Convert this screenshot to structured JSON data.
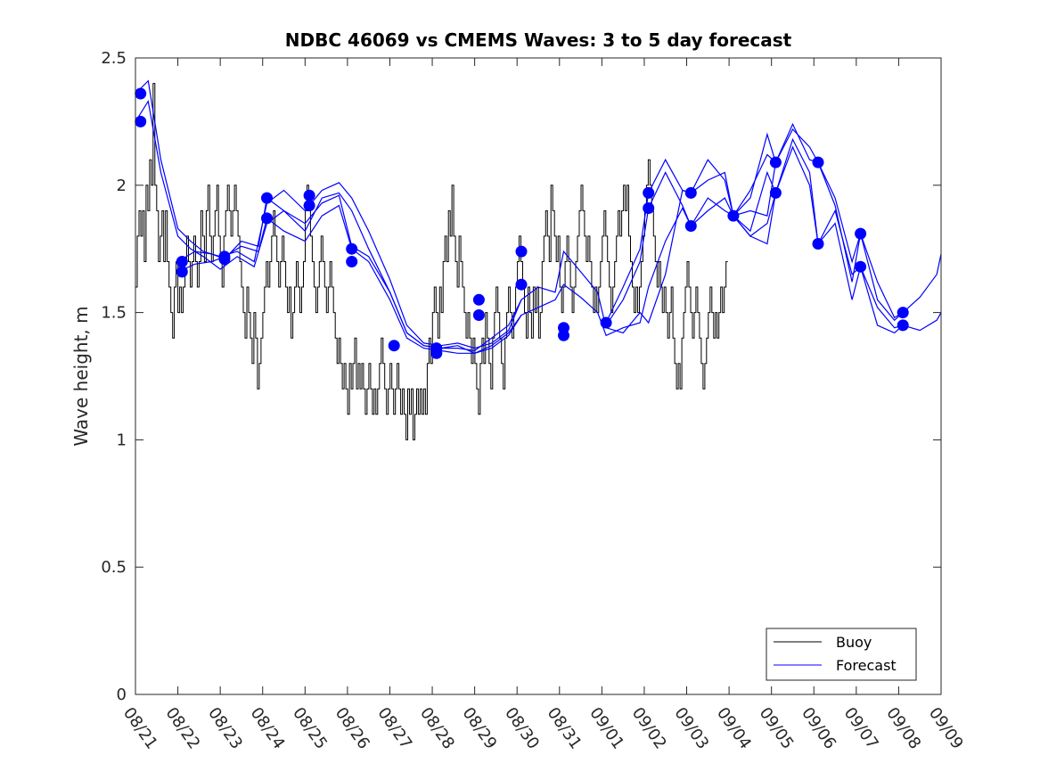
{
  "chart_data": {
    "type": "line",
    "title": "NDBC 46069 vs CMEMS Waves: 3 to 5 day forecast",
    "xlabel": "",
    "ylabel": "Wave height, m",
    "xlim": [
      0,
      19
    ],
    "ylim": [
      0,
      2.5
    ],
    "yticks": [
      0,
      0.5,
      1,
      1.5,
      2,
      2.5
    ],
    "ytick_labels": [
      "0",
      "0.5",
      "1",
      "1.5",
      "2",
      "2.5"
    ],
    "xtick_labels": [
      "08/21",
      "08/22",
      "08/23",
      "08/24",
      "08/25",
      "08/26",
      "08/27",
      "08/28",
      "08/29",
      "08/30",
      "08/31",
      "09/01",
      "09/02",
      "09/03",
      "09/04",
      "09/05",
      "09/06",
      "09/07",
      "09/08",
      "09/09"
    ],
    "legend": {
      "position": "bottom-right",
      "entries": [
        "Buoy",
        "Forecast"
      ]
    },
    "colors": {
      "buoy": "#000000",
      "forecast": "#0000ff",
      "axes": "#262626"
    },
    "buoy": {
      "name": "Buoy",
      "step_days": 0.0417,
      "x0": 0.0,
      "values": [
        1.6,
        1.8,
        1.9,
        1.8,
        1.9,
        1.7,
        2.0,
        1.9,
        2.1,
        2.0,
        2.4,
        2.0,
        1.9,
        1.7,
        1.8,
        1.9,
        1.7,
        1.9,
        1.7,
        1.6,
        1.5,
        1.4,
        1.6,
        1.7,
        1.5,
        1.6,
        1.5,
        1.6,
        1.7,
        1.8,
        1.7,
        1.6,
        1.7,
        1.8,
        1.7,
        1.6,
        1.7,
        1.9,
        1.8,
        1.7,
        1.9,
        2.0,
        1.8,
        1.7,
        1.8,
        1.9,
        2.0,
        1.8,
        1.7,
        1.6,
        1.8,
        1.9,
        2.0,
        1.9,
        1.8,
        1.9,
        2.0,
        1.9,
        1.8,
        1.7,
        1.6,
        1.5,
        1.4,
        1.6,
        1.5,
        1.4,
        1.3,
        1.5,
        1.4,
        1.2,
        1.3,
        1.4,
        1.5,
        1.6,
        1.7,
        1.6,
        1.7,
        1.8,
        1.9,
        1.8,
        1.7,
        1.6,
        1.7,
        1.8,
        1.7,
        1.6,
        1.5,
        1.6,
        1.4,
        1.5,
        1.6,
        1.7,
        1.6,
        1.5,
        1.6,
        1.7,
        1.9,
        2.0,
        1.9,
        1.8,
        1.7,
        1.6,
        1.5,
        1.6,
        1.7,
        1.8,
        1.7,
        1.6,
        1.5,
        1.6,
        1.7,
        1.6,
        1.5,
        1.4,
        1.3,
        1.4,
        1.3,
        1.2,
        1.3,
        1.2,
        1.1,
        1.3,
        1.2,
        1.3,
        1.4,
        1.2,
        1.3,
        1.2,
        1.3,
        1.2,
        1.1,
        1.2,
        1.3,
        1.2,
        1.1,
        1.2,
        1.1,
        1.2,
        1.3,
        1.4,
        1.3,
        1.2,
        1.1,
        1.2,
        1.3,
        1.2,
        1.1,
        1.2,
        1.3,
        1.2,
        1.1,
        1.2,
        1.1,
        1.0,
        1.2,
        1.1,
        1.2,
        1.0,
        1.1,
        1.2,
        1.1,
        1.2,
        1.1,
        1.2,
        1.1,
        1.3,
        1.4,
        1.3,
        1.5,
        1.6,
        1.5,
        1.4,
        1.6,
        1.5,
        1.7,
        1.8,
        1.7,
        1.9,
        1.8,
        2.0,
        1.8,
        1.7,
        1.6,
        1.8,
        1.7,
        1.6,
        1.5,
        1.4,
        1.5,
        1.4,
        1.3,
        1.4,
        1.3,
        1.2,
        1.1,
        1.3,
        1.4,
        1.3,
        1.5,
        1.4,
        1.3,
        1.2,
        1.4,
        1.5,
        1.6,
        1.5,
        1.4,
        1.3,
        1.2,
        1.4,
        1.5,
        1.6,
        1.5,
        1.4,
        1.5,
        1.6,
        1.7,
        1.8,
        1.7,
        1.6,
        1.5,
        1.4,
        1.6,
        1.5,
        1.4,
        1.6,
        1.5,
        1.6,
        1.4,
        1.5,
        1.7,
        1.8,
        1.9,
        1.8,
        1.7,
        2.0,
        1.9,
        1.8,
        1.7,
        1.8,
        1.6,
        1.5,
        1.6,
        1.7,
        1.8,
        1.7,
        1.6,
        1.5,
        1.6,
        1.7,
        1.8,
        1.9,
        2.0,
        1.9,
        1.8,
        1.7,
        1.8,
        1.7,
        1.6,
        1.5,
        1.6,
        1.5,
        1.6,
        1.7,
        1.8,
        1.9,
        1.8,
        1.7,
        1.6,
        1.5,
        1.6,
        1.7,
        1.8,
        1.9,
        1.8,
        1.9,
        2.0,
        1.9,
        2.0,
        1.8,
        1.7,
        1.6,
        1.5,
        1.6,
        1.5,
        1.6,
        1.7,
        1.8,
        1.9,
        2.0,
        2.1,
        2.0,
        1.9,
        1.8,
        1.7,
        1.6,
        1.7,
        1.6,
        1.5,
        1.6,
        1.5,
        1.4,
        1.5,
        1.6,
        1.4,
        1.3,
        1.2,
        1.3,
        1.2,
        1.4,
        1.5,
        1.6,
        1.7,
        1.6,
        1.5,
        1.4,
        1.5,
        1.6,
        1.5,
        1.4,
        1.3,
        1.2,
        1.3,
        1.4,
        1.5,
        1.6,
        1.5,
        1.4,
        1.5,
        1.4,
        1.5,
        1.6,
        1.5,
        1.6,
        1.7
      ]
    },
    "forecast_lines": [
      {
        "x": [
          0.0,
          0.3,
          0.6,
          1.0,
          1.3,
          1.6,
          2.0,
          2.4,
          2.8,
          3.1,
          3.5,
          4.0,
          4.4,
          4.8,
          5.1,
          5.5,
          6.0,
          6.4,
          6.8,
          7.2,
          7.6,
          8.0
        ],
        "values": [
          2.25,
          2.33,
          2.05,
          1.8,
          1.75,
          1.72,
          1.67,
          1.72,
          1.68,
          1.85,
          1.9,
          1.82,
          1.95,
          1.97,
          1.9,
          1.75,
          1.58,
          1.42,
          1.37,
          1.36,
          1.37,
          1.34
        ]
      },
      {
        "x": [
          0.0,
          0.3,
          0.6,
          1.0,
          1.3,
          1.6,
          2.0,
          2.4,
          2.8,
          3.1,
          3.5,
          4.0,
          4.4,
          4.8,
          5.1,
          5.5,
          6.0,
          6.4,
          6.8,
          7.2,
          7.6,
          8.0
        ],
        "values": [
          2.36,
          2.41,
          2.1,
          1.83,
          1.78,
          1.74,
          1.72,
          1.74,
          1.7,
          1.93,
          1.98,
          1.9,
          1.98,
          2.01,
          1.95,
          1.82,
          1.63,
          1.45,
          1.38,
          1.37,
          1.38,
          1.36
        ]
      },
      {
        "x": [
          1.0,
          1.4,
          1.8,
          2.1,
          2.5,
          2.9,
          3.1,
          3.5,
          4.0,
          4.4,
          4.8,
          5.1,
          5.5,
          6.0,
          6.4,
          6.8,
          7.2,
          7.6,
          8.0,
          8.4,
          8.8,
          9.1
        ],
        "values": [
          1.66,
          1.69,
          1.7,
          1.72,
          1.76,
          1.74,
          1.87,
          1.82,
          1.78,
          1.88,
          1.92,
          1.75,
          1.7,
          1.55,
          1.4,
          1.36,
          1.35,
          1.34,
          1.34,
          1.37,
          1.42,
          1.49
        ]
      },
      {
        "x": [
          1.0,
          1.4,
          1.8,
          2.1,
          2.5,
          2.9,
          3.1,
          3.5,
          4.0,
          4.4,
          4.8,
          5.1,
          5.5,
          6.0,
          6.4,
          6.8,
          7.2,
          7.6,
          8.0,
          8.4,
          8.8,
          9.1
        ],
        "values": [
          1.7,
          1.74,
          1.73,
          1.71,
          1.78,
          1.76,
          1.95,
          1.9,
          1.85,
          1.93,
          1.96,
          1.76,
          1.72,
          1.58,
          1.42,
          1.37,
          1.36,
          1.36,
          1.35,
          1.4,
          1.45,
          1.55
        ]
      },
      {
        "x": [
          8.0,
          8.4,
          8.8,
          9.1,
          9.5,
          9.9,
          10.1,
          10.5,
          10.9,
          11.1,
          11.5,
          11.9,
          12.1,
          12.5,
          12.9,
          13.1,
          13.5,
          13.9,
          14.1,
          14.5,
          14.9,
          15.1
        ],
        "values": [
          1.36,
          1.38,
          1.43,
          1.55,
          1.6,
          1.58,
          1.74,
          1.66,
          1.58,
          1.44,
          1.42,
          1.5,
          1.46,
          1.65,
          1.98,
          1.97,
          2.02,
          2.05,
          1.88,
          1.9,
          1.88,
          2.09
        ]
      },
      {
        "x": [
          8.0,
          8.4,
          8.8,
          9.1,
          9.5,
          9.9,
          10.1,
          10.5,
          10.9,
          11.1,
          11.5,
          11.9,
          12.1,
          12.5,
          12.9,
          13.1,
          13.5,
          13.9,
          14.1,
          14.5,
          14.9,
          15.1
        ],
        "values": [
          1.34,
          1.36,
          1.41,
          1.49,
          1.52,
          1.55,
          1.61,
          1.56,
          1.5,
          1.41,
          1.44,
          1.46,
          1.6,
          1.78,
          1.91,
          1.84,
          1.9,
          1.95,
          1.88,
          1.8,
          1.77,
          1.97
        ]
      },
      {
        "x": [
          11.1,
          11.5,
          11.9,
          12.1,
          12.5,
          12.9,
          13.1,
          13.5,
          13.9,
          14.1,
          14.5,
          14.9,
          15.1,
          15.5,
          15.9,
          16.1,
          16.5,
          16.9,
          17.1,
          17.5,
          17.9,
          18.1
        ],
        "values": [
          1.46,
          1.6,
          1.75,
          1.97,
          2.1,
          1.98,
          1.97,
          2.1,
          2.02,
          1.88,
          1.98,
          2.12,
          2.09,
          2.22,
          2.15,
          2.09,
          1.95,
          1.7,
          1.81,
          1.62,
          1.48,
          1.5
        ]
      },
      {
        "x": [
          11.1,
          11.5,
          11.9,
          12.1,
          12.5,
          12.9,
          13.1,
          13.5,
          13.9,
          14.1,
          14.5,
          14.9,
          15.1,
          15.5,
          15.9,
          16.1,
          16.5,
          16.9,
          17.1,
          17.5,
          17.9,
          18.1
        ],
        "values": [
          1.45,
          1.55,
          1.7,
          1.91,
          2.05,
          1.92,
          1.84,
          1.95,
          1.9,
          1.88,
          1.8,
          1.85,
          1.97,
          2.18,
          2.05,
          1.77,
          1.9,
          1.65,
          1.68,
          1.52,
          1.44,
          1.45
        ]
      },
      {
        "x": [
          14.1,
          14.5,
          14.9,
          15.1,
          15.5,
          15.9,
          16.1,
          16.5,
          16.9,
          17.1,
          17.5,
          17.9,
          18.1,
          18.5,
          18.9,
          19.0
        ],
        "values": [
          1.88,
          1.95,
          2.2,
          2.09,
          2.24,
          2.1,
          2.09,
          1.92,
          1.62,
          1.81,
          1.55,
          1.47,
          1.5,
          1.56,
          1.65,
          1.73
        ]
      },
      {
        "x": [
          14.1,
          14.5,
          14.9,
          15.1,
          15.5,
          15.9,
          16.1,
          16.5,
          16.9,
          17.1,
          17.5,
          17.9,
          18.1,
          18.5,
          18.9,
          19.0
        ],
        "values": [
          1.88,
          1.82,
          2.05,
          1.97,
          2.15,
          2.0,
          1.77,
          1.85,
          1.55,
          1.68,
          1.45,
          1.42,
          1.45,
          1.43,
          1.47,
          1.5
        ]
      }
    ],
    "forecast_markers": {
      "x": [
        0.12,
        0.12,
        1.1,
        1.1,
        2.1,
        2.1,
        3.1,
        3.1,
        4.1,
        4.1,
        5.1,
        5.1,
        6.1,
        7.1,
        7.1,
        8.1,
        8.1,
        9.1,
        9.1,
        10.1,
        10.1,
        11.1,
        12.1,
        12.1,
        13.1,
        13.1,
        14.1,
        15.1,
        15.1,
        16.1,
        16.1,
        17.1,
        17.1,
        18.1,
        18.1
      ],
      "values": [
        2.36,
        2.25,
        1.7,
        1.66,
        1.72,
        1.71,
        1.95,
        1.87,
        1.96,
        1.92,
        1.75,
        1.7,
        1.37,
        1.36,
        1.34,
        1.55,
        1.49,
        1.74,
        1.61,
        1.44,
        1.41,
        1.46,
        1.97,
        1.91,
        1.97,
        1.84,
        1.88,
        2.09,
        1.97,
        2.09,
        1.77,
        1.81,
        1.68,
        1.5,
        1.45
      ]
    }
  }
}
